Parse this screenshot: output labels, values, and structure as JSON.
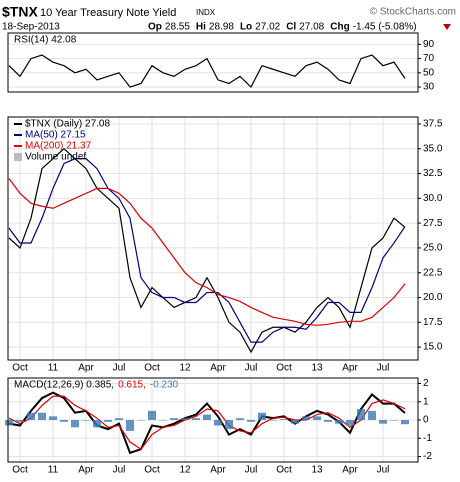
{
  "header": {
    "symbol": "$TNX",
    "name": "10 Year Treasury Note Yield",
    "exchange": "INDX",
    "date": "18-Sep-2013",
    "watermark": "© StockCharts.com",
    "quote": [
      {
        "label": "Op",
        "value": "28.55"
      },
      {
        "label": "Hi",
        "value": "28.98"
      },
      {
        "label": "Lo",
        "value": "27.02"
      },
      {
        "label": "Cl",
        "value": "27.08"
      },
      {
        "label": "Chg",
        "value": "-1.45 (-5.08%)"
      }
    ]
  },
  "chart_data": [
    {
      "type": "line",
      "ylim": [
        23,
        106
      ],
      "yticks": [
        90,
        70,
        50,
        30
      ],
      "grid": true,
      "series": [
        {
          "name": "RSI(14) 42.08",
          "color": "#000000",
          "values": [
            60,
            45,
            70,
            75,
            65,
            60,
            50,
            55,
            40,
            45,
            50,
            30,
            35,
            60,
            50,
            45,
            55,
            60,
            70,
            40,
            35,
            45,
            30,
            60,
            55,
            50,
            45,
            60,
            65,
            55,
            40,
            35,
            70,
            75,
            60,
            65,
            42.08
          ]
        }
      ]
    },
    {
      "type": "line",
      "ylim": [
        13.7,
        38.2
      ],
      "yticks": [
        {
          "value": 15,
          "label": "15.0"
        },
        17.5,
        {
          "value": 20,
          "label": "20.0"
        },
        22.5,
        {
          "value": 25,
          "label": "25.0"
        },
        27.5,
        {
          "value": 30,
          "label": "30.0"
        },
        32.5,
        {
          "value": 35,
          "label": "35.0"
        },
        37.5
      ],
      "grid": true,
      "volume_label": "Volume undef",
      "categories": [
        null,
        "Oct",
        null,
        null,
        "11",
        null,
        null,
        "Apr",
        null,
        null,
        "Jul",
        null,
        null,
        "Oct",
        null,
        null,
        "12",
        null,
        null,
        "Apr",
        null,
        null,
        "Jul",
        null,
        null,
        "Oct",
        null,
        null,
        "13",
        null,
        null,
        "Apr",
        null,
        null,
        "Jul",
        null,
        null
      ],
      "series": [
        {
          "name": "$TNX (Daily) 27.08",
          "color": "#000000",
          "values": [
            26,
            25,
            28,
            33,
            34,
            35,
            34,
            33,
            31,
            30,
            29,
            22,
            19,
            21,
            20,
            19,
            19.5,
            20,
            22,
            20,
            17.5,
            16.5,
            14.5,
            16.5,
            17,
            17,
            16.5,
            17.5,
            19,
            20,
            19,
            17,
            21,
            25,
            26,
            28,
            27.08
          ]
        },
        {
          "name": "MA(50) 27.15",
          "color": "#000080",
          "values": [
            27,
            25.5,
            25.5,
            28,
            31,
            33.5,
            34,
            34,
            33,
            31,
            30,
            28,
            22,
            20.5,
            20,
            20,
            19.5,
            19.5,
            20.5,
            20.5,
            19.5,
            17.5,
            15.5,
            15.5,
            16.5,
            17,
            17,
            16.8,
            18,
            19.5,
            19.5,
            18.5,
            18.5,
            21,
            24,
            25.5,
            27.15
          ]
        },
        {
          "name": "MA(200) 21.37",
          "color": "#dd0000",
          "values": [
            32,
            30.5,
            29.5,
            29.2,
            29,
            29.5,
            30,
            30.5,
            31,
            31,
            30.5,
            29.5,
            28,
            27,
            25.5,
            24,
            22.5,
            21.5,
            21,
            20.3,
            20,
            19.6,
            19,
            18.5,
            18,
            17.8,
            17.6,
            17.3,
            17.2,
            17.3,
            17.5,
            17.6,
            17.6,
            18,
            19,
            20,
            21.37
          ]
        }
      ]
    },
    {
      "type": "line",
      "ylim": [
        -2.3,
        2.3
      ],
      "yticks": [
        2,
        1,
        0,
        -1,
        -2
      ],
      "grid": true,
      "categories": [
        null,
        "Oct",
        null,
        null,
        "11",
        null,
        null,
        "Apr",
        null,
        null,
        "Jul",
        null,
        null,
        "Oct",
        null,
        null,
        "12",
        null,
        null,
        "Apr",
        null,
        null,
        "Jul",
        null,
        null,
        "Oct",
        null,
        null,
        "13",
        null,
        null,
        "Apr",
        null,
        null,
        "Jul",
        null,
        null
      ],
      "series": [
        {
          "name": "MACD(12,26,9) 0.385,",
          "color": "#000000",
          "style": "line",
          "values": [
            -0.2,
            -0.3,
            0.5,
            1.2,
            1.5,
            1.2,
            0.4,
            0.5,
            -0.3,
            -0.5,
            -0.2,
            -1.8,
            -1.6,
            -0.3,
            -0.4,
            -0.2,
            0.1,
            0.3,
            0.9,
            0.2,
            -0.8,
            -0.5,
            -0.8,
            0.2,
            0.1,
            0.2,
            -0.2,
            0.2,
            0.5,
            0.3,
            -0.1,
            -0.7,
            0.6,
            1.4,
            0.9,
            0.9,
            0.385
          ]
        },
        {
          "name": "0.615,",
          "color": "#dd0000",
          "style": "line",
          "values": [
            0.1,
            -0.2,
            0.1,
            0.8,
            1.3,
            1.3,
            0.8,
            0.5,
            0.1,
            -0.4,
            -0.3,
            -1.2,
            -1.6,
            -0.8,
            -0.4,
            -0.3,
            0,
            0.2,
            0.6,
            0.5,
            -0.3,
            -0.6,
            -0.7,
            -0.2,
            0.1,
            0.15,
            0,
            0,
            0.3,
            0.4,
            0.1,
            -0.4,
            0,
            0.9,
            1.1,
            0.9,
            0.615
          ]
        },
        {
          "name": "-0.230",
          "color": "#3c78b4",
          "style": "bar",
          "values": [
            -0.3,
            -0.1,
            0.4,
            0.4,
            0.2,
            -0.1,
            -0.4,
            0,
            -0.4,
            -0.1,
            0.1,
            -0.6,
            0,
            0.5,
            0,
            0.1,
            0.1,
            0.1,
            0.3,
            -0.3,
            -0.5,
            0.1,
            -0.1,
            0.4,
            0,
            0.05,
            -0.2,
            0.2,
            0.2,
            -0.1,
            -0.2,
            -0.3,
            0.6,
            0.5,
            -0.2,
            0,
            -0.23
          ]
        }
      ]
    }
  ]
}
